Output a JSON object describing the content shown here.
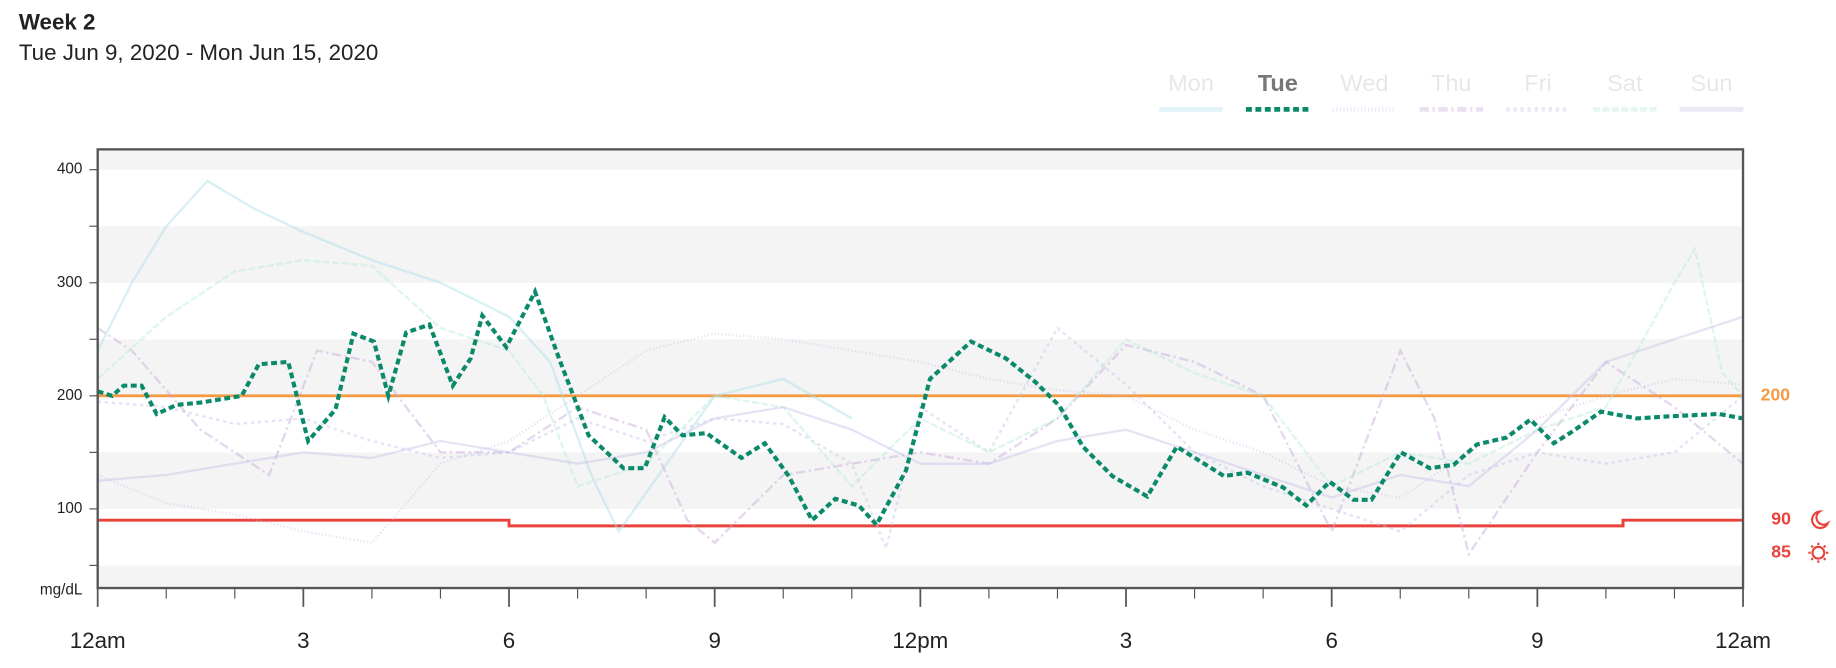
{
  "chart_data": {
    "type": "line",
    "title": "Week 2",
    "subtitle": "Tue Jun 9, 2020 - Mon Jun 15, 2020",
    "y_label": "mg/dL",
    "xlim": [
      0,
      24
    ],
    "xticks": [
      {
        "value": 0,
        "label": "12am"
      },
      3,
      6,
      9,
      {
        "value": 12,
        "label": "12pm"
      },
      {
        "value": 15,
        "label": "3"
      },
      {
        "value": 18,
        "label": "6"
      },
      {
        "value": 21,
        "label": "9"
      },
      {
        "value": 24,
        "label": "12am"
      }
    ],
    "xminorticks": [
      1,
      2,
      4,
      5,
      7,
      8,
      10,
      11,
      13,
      14,
      16,
      17,
      19,
      20,
      22,
      23
    ],
    "ylim": [
      30,
      418
    ],
    "yticks": [
      100,
      200,
      300,
      400
    ],
    "yminorticks": [
      50,
      150,
      250,
      350
    ],
    "active": "Tue",
    "high_target": {
      "value": 200,
      "label": "200",
      "color": "#f59a45"
    },
    "low_target": {
      "night": 90,
      "day": 85,
      "day_start": 6,
      "day_end": 22.25,
      "color": "#e8423a"
    },
    "series": [
      {
        "name": "Mon",
        "color": "#a9dde9",
        "dash": "none",
        "x": [
          0,
          0.5,
          1,
          1.6,
          2.3,
          3,
          4,
          5,
          6,
          6.6,
          7.2,
          7.6,
          8.3,
          9,
          10,
          11
        ],
        "values": [
          240,
          300,
          350,
          390,
          365,
          345,
          320,
          300,
          270,
          230,
          130,
          80,
          140,
          200,
          215,
          180
        ]
      },
      {
        "name": "Tue",
        "color": "#0a8a6a",
        "dash": "5 3",
        "x": [
          0,
          0.21,
          0.38,
          0.64,
          0.86,
          1.15,
          1.5,
          2.1,
          2.35,
          2.78,
          3.07,
          3.47,
          3.73,
          4.03,
          4.24,
          4.5,
          4.84,
          5.18,
          5.44,
          5.61,
          5.96,
          6.38,
          6.73,
          7.16,
          7.67,
          7.98,
          8.27,
          8.53,
          8.88,
          9.39,
          9.73,
          10.08,
          10.42,
          10.76,
          11.1,
          11.36,
          11.79,
          12.14,
          12.74,
          13.25,
          13.68,
          14.03,
          14.37,
          14.8,
          15.31,
          15.74,
          16.43,
          16.77,
          17.29,
          17.63,
          17.97,
          18.32,
          18.58,
          19.01,
          19.43,
          19.78,
          20.12,
          20.55,
          20.9,
          21.24,
          21.5,
          21.93,
          22.45,
          22.96,
          23.65,
          24
        ],
        "values": [
          204,
          200,
          209,
          209,
          184,
          192,
          194,
          200,
          228,
          230,
          160,
          188,
          255,
          248,
          200,
          256,
          263,
          209,
          233,
          271,
          243,
          292,
          233,
          165,
          136,
          136,
          181,
          165,
          167,
          145,
          158,
          129,
          90,
          109,
          103,
          86,
          134,
          215,
          248,
          233,
          212,
          191,
          155,
          129,
          111,
          155,
          129,
          132,
          119,
          103,
          124,
          108,
          108,
          150,
          136,
          139,
          157,
          163,
          179,
          158,
          168,
          186,
          180,
          182,
          184,
          180
        ]
      },
      {
        "name": "Wed",
        "color": "#cbb8e6",
        "dash": "1 2",
        "x": [
          0,
          1,
          2,
          3,
          4,
          5,
          6,
          7,
          8,
          9,
          10,
          11,
          12,
          13,
          14,
          15,
          16,
          17,
          18,
          19,
          20,
          21,
          22,
          23,
          24
        ],
        "values": [
          130,
          105,
          95,
          80,
          70,
          140,
          160,
          200,
          240,
          255,
          250,
          240,
          230,
          215,
          205,
          200,
          170,
          150,
          120,
          110,
          150,
          180,
          200,
          215,
          210
        ]
      },
      {
        "name": "Thu",
        "color": "#c7a7dc",
        "dash": "8 3 2 3",
        "x": [
          0,
          0.5,
          1.5,
          2.5,
          3.2,
          4,
          5,
          6,
          7,
          8,
          8.6,
          9,
          10,
          11,
          12,
          13,
          14,
          15,
          16,
          17,
          18,
          19,
          19.5,
          20,
          21,
          22,
          23,
          24
        ],
        "values": [
          260,
          240,
          170,
          130,
          240,
          230,
          150,
          150,
          190,
          170,
          90,
          70,
          130,
          140,
          150,
          140,
          180,
          245,
          230,
          200,
          80,
          240,
          180,
          60,
          150,
          230,
          190,
          140
        ]
      },
      {
        "name": "Fri",
        "color": "#c1c6ee",
        "dash": "3 3",
        "x": [
          0,
          1,
          2,
          3,
          4,
          5,
          6,
          7,
          8,
          9,
          10,
          11,
          11.5,
          12,
          13,
          14,
          15,
          16,
          17,
          18,
          19,
          20,
          21,
          22,
          23,
          24
        ],
        "values": [
          195,
          190,
          175,
          180,
          160,
          145,
          150,
          180,
          160,
          180,
          175,
          140,
          65,
          190,
          150,
          260,
          210,
          150,
          120,
          100,
          80,
          130,
          150,
          140,
          150,
          200
        ]
      },
      {
        "name": "Sat",
        "color": "#b6ead7",
        "dash": "6 2",
        "x": [
          0,
          1,
          2,
          3,
          4,
          5,
          6,
          6.5,
          7,
          8,
          9,
          10,
          11,
          12,
          13,
          14,
          15,
          16,
          17,
          18,
          19,
          20,
          21,
          22,
          23,
          23.3,
          23.7,
          24
        ],
        "values": [
          215,
          270,
          310,
          320,
          315,
          260,
          240,
          200,
          120,
          140,
          200,
          190,
          120,
          180,
          150,
          180,
          250,
          220,
          200,
          120,
          150,
          140,
          170,
          190,
          300,
          330,
          220,
          200
        ]
      },
      {
        "name": "Sun",
        "color": "#c8c0e8",
        "dash": "none",
        "x": [
          0,
          1,
          2,
          3,
          4,
          5,
          6,
          7,
          8,
          9,
          10,
          11,
          12,
          13,
          14,
          15,
          16,
          17,
          18,
          19,
          20,
          21,
          22,
          23,
          24
        ],
        "values": [
          125,
          130,
          140,
          150,
          145,
          160,
          150,
          140,
          150,
          180,
          190,
          170,
          140,
          140,
          160,
          170,
          150,
          130,
          110,
          130,
          120,
          170,
          230,
          250,
          270
        ]
      }
    ]
  }
}
